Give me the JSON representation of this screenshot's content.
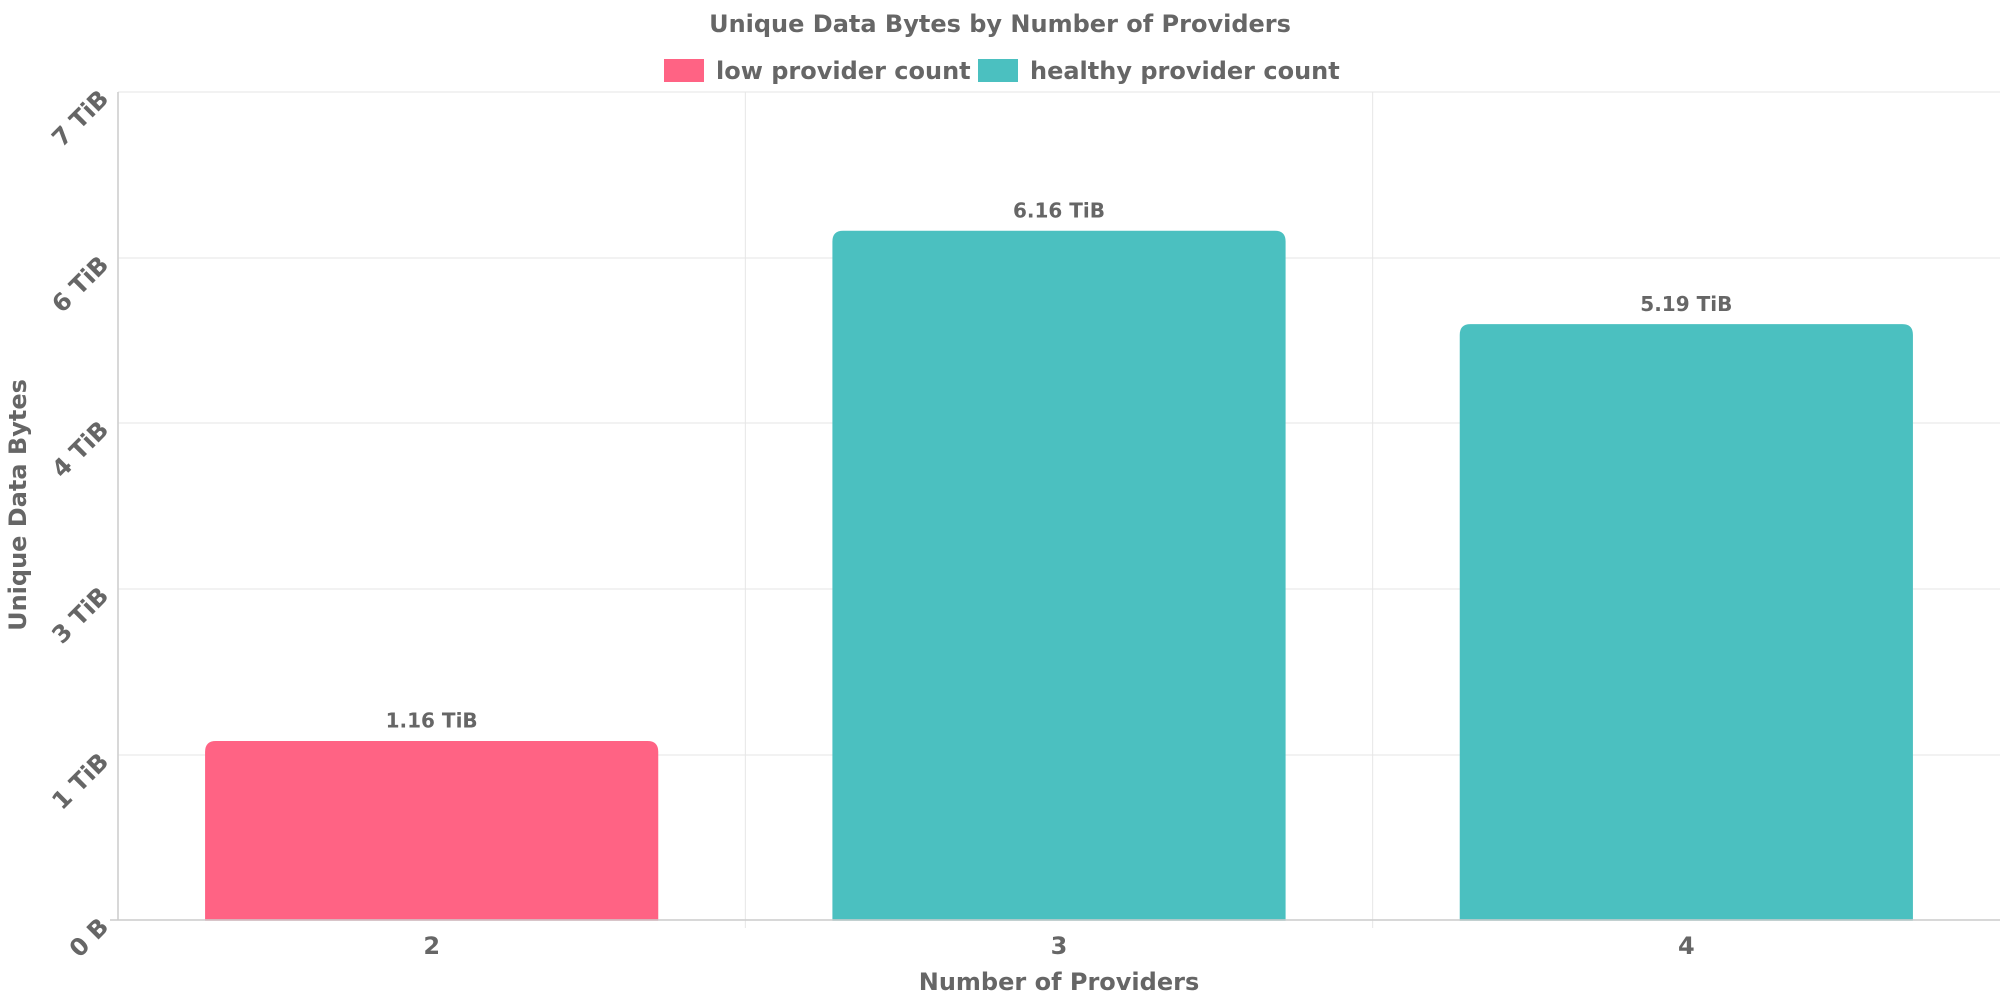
{
  "chart_data": {
    "type": "bar",
    "title": "Unique Data Bytes by Number of Providers",
    "xlabel": "Number of Providers",
    "ylabel": "Unique Data Bytes",
    "categories": [
      "2",
      "3",
      "4"
    ],
    "values": [
      1.16,
      6.16,
      5.19
    ],
    "value_labels": [
      "1.16 TiB",
      "6.16 TiB",
      "5.19 TiB"
    ],
    "bar_series": [
      "low provider count",
      "healthy provider count",
      "healthy provider count"
    ],
    "series": [
      {
        "name": "low provider count",
        "color": "#ff6384"
      },
      {
        "name": "healthy provider count",
        "color": "#4bc0c0"
      }
    ],
    "y_axis": {
      "scale": "log-like (non-linear, evenly spaced ticks)",
      "tick_labels": [
        "0 B",
        "1 TiB",
        "3 TiB",
        "4 TiB",
        "6 TiB",
        "7 TiB"
      ]
    },
    "legend": "top-center",
    "grid": true
  }
}
